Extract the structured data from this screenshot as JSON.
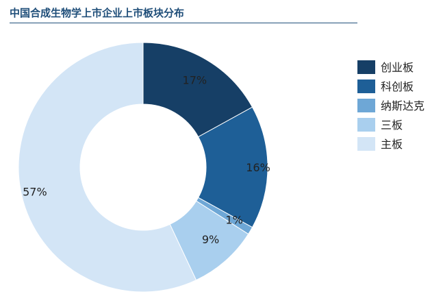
{
  "chart_data": {
    "type": "pie",
    "donut": true,
    "title": "中国合成生物学上市企业上市板块分布",
    "legend_position": "right",
    "slices": [
      {
        "name": "创业板",
        "value": 17,
        "label": "17%",
        "color": "#163f66"
      },
      {
        "name": "科创板",
        "value": 16,
        "label": "16%",
        "color": "#1e5f97"
      },
      {
        "name": "纳斯达克",
        "value": 1,
        "label": "1%",
        "color": "#6ea7d6"
      },
      {
        "name": "三板",
        "value": 9,
        "label": "9%",
        "color": "#a9cfee"
      },
      {
        "name": "主板",
        "value": 57,
        "label": "57%",
        "color": "#d3e5f6"
      }
    ]
  }
}
